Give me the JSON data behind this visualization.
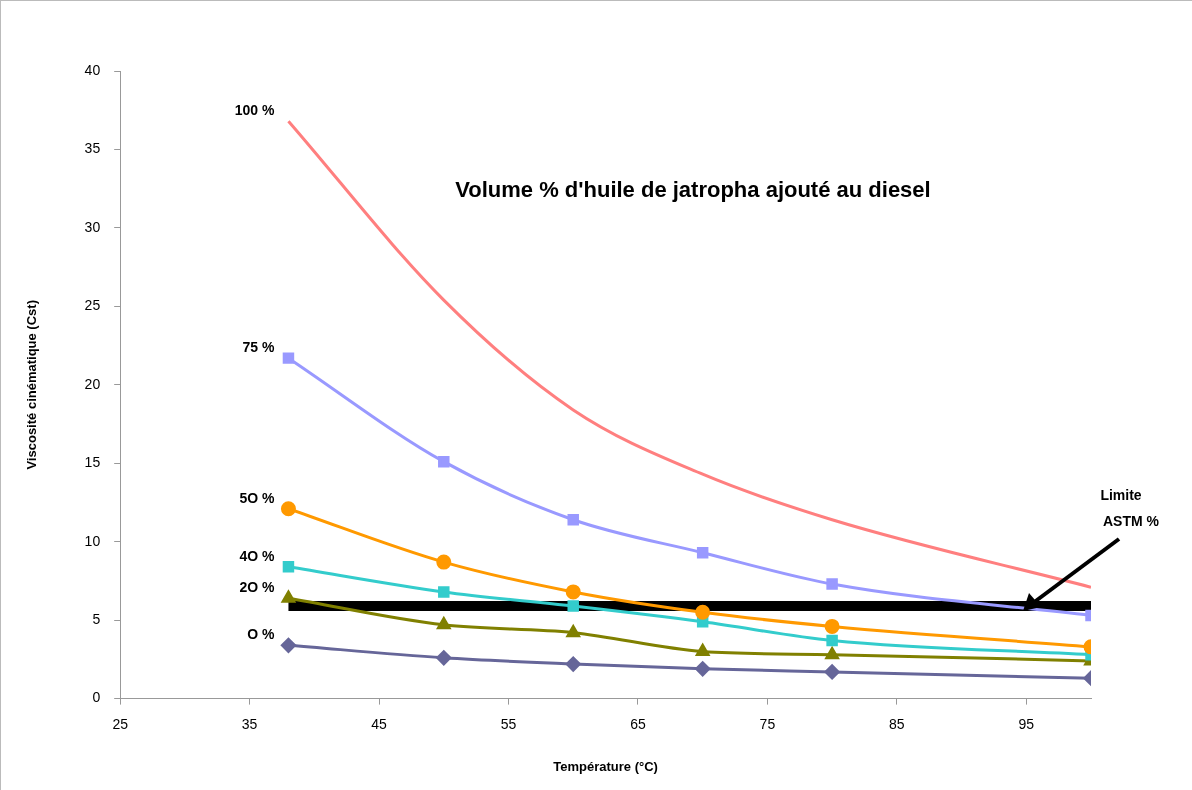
{
  "chart_data": {
    "type": "line",
    "title": "Volume % d'huile de jatropha ajouté au diesel",
    "xlabel": "Température (°C)",
    "ylabel": "Viscosité cinématique (Cst)",
    "x": [
      38,
      50,
      60,
      70,
      80,
      100
    ],
    "xlim": [
      25,
      100
    ],
    "xticks": [
      25,
      35,
      45,
      55,
      65,
      75,
      85,
      95
    ],
    "ylim": [
      0,
      40
    ],
    "yticks": [
      0,
      5,
      10,
      15,
      20,
      25,
      30,
      35,
      40
    ],
    "grid": false,
    "legend": false,
    "series": [
      {
        "name": "100 %",
        "color": "#ff7f7f",
        "marker": "none",
        "values": [
          36.8,
          25.4,
          18.4,
          14.3,
          11.4,
          7.1
        ]
      },
      {
        "name": "75 %",
        "color": "#9999ff",
        "marker": "square",
        "values": [
          21.7,
          15.1,
          11.4,
          9.3,
          7.3,
          5.3
        ]
      },
      {
        "name": "5O %",
        "color": "#ff9900",
        "marker": "circle",
        "values": [
          12.1,
          8.7,
          6.8,
          5.5,
          4.6,
          3.3
        ]
      },
      {
        "name": "4O %",
        "color": "#33cccc",
        "marker": "square",
        "values": [
          8.4,
          6.8,
          5.9,
          4.9,
          3.7,
          2.8
        ]
      },
      {
        "name": "2O %",
        "color": "#808000",
        "marker": "triangle",
        "values": [
          6.4,
          4.7,
          4.2,
          3.0,
          2.8,
          2.4
        ]
      },
      {
        "name": "O %",
        "color": "#666699",
        "marker": "diamond",
        "values": [
          3.4,
          2.6,
          2.2,
          1.9,
          1.7,
          1.3
        ]
      },
      {
        "name": "Limite ASTM %",
        "color": "#000000",
        "marker": "none",
        "values": [
          5.9,
          5.9,
          5.9,
          5.9,
          5.9,
          5.9
        ]
      }
    ]
  }
}
